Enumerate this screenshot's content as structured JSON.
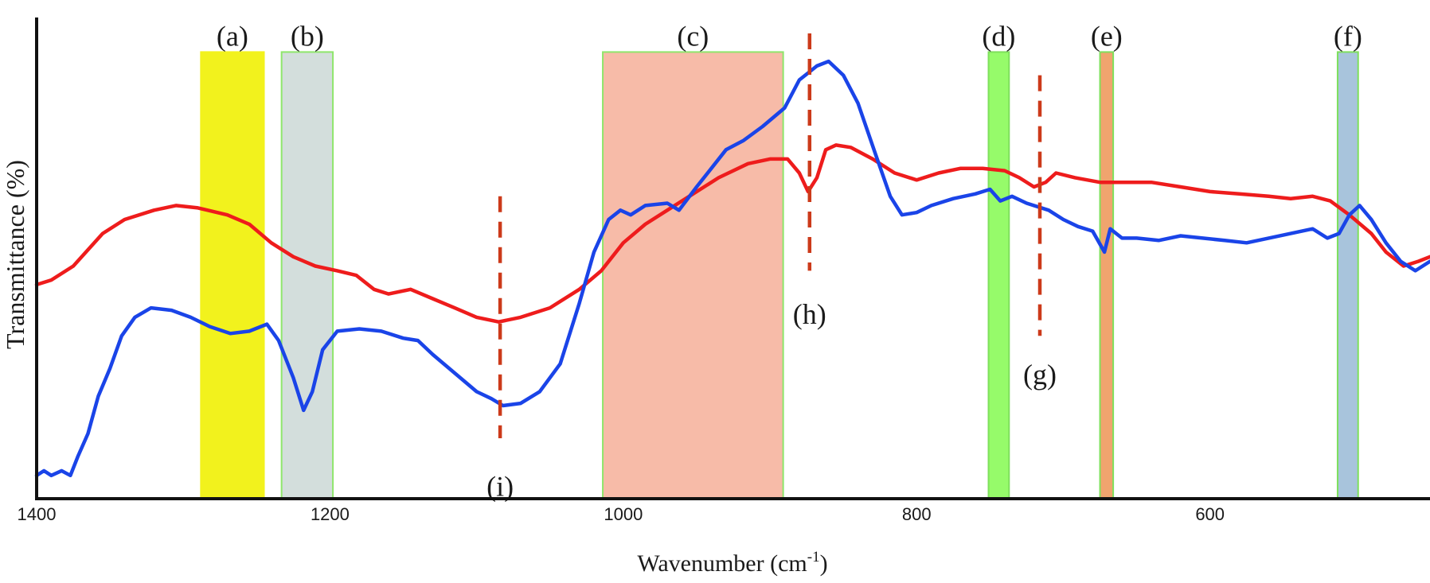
{
  "chart_data": {
    "type": "line",
    "xlabel": "Wavenumber (cm",
    "xlabel_sup": "-1",
    "xlabel_close": ")",
    "ylabel": "Transmittance (%)",
    "xlim": [
      1400,
      450
    ],
    "ylim": [
      0,
      100
    ],
    "x_reversed": true,
    "xticks": [
      1400,
      1200,
      1000,
      800,
      600
    ],
    "grid": false,
    "legend": "none",
    "series": [
      {
        "color": "#ee1c1c",
        "points": [
          [
            1400,
            46
          ],
          [
            1390,
            47
          ],
          [
            1375,
            50
          ],
          [
            1355,
            57
          ],
          [
            1340,
            60
          ],
          [
            1320,
            62
          ],
          [
            1305,
            63
          ],
          [
            1290,
            62.5
          ],
          [
            1270,
            61
          ],
          [
            1255,
            59
          ],
          [
            1240,
            55
          ],
          [
            1225,
            52
          ],
          [
            1210,
            50
          ],
          [
            1195,
            49
          ],
          [
            1182,
            48
          ],
          [
            1170,
            45
          ],
          [
            1160,
            44
          ],
          [
            1145,
            45
          ],
          [
            1130,
            43
          ],
          [
            1115,
            41
          ],
          [
            1100,
            39
          ],
          [
            1085,
            38
          ],
          [
            1070,
            39
          ],
          [
            1050,
            41
          ],
          [
            1030,
            45
          ],
          [
            1015,
            49
          ],
          [
            1000,
            55
          ],
          [
            985,
            59
          ],
          [
            970,
            62
          ],
          [
            955,
            65
          ],
          [
            935,
            69
          ],
          [
            915,
            72
          ],
          [
            900,
            73
          ],
          [
            888,
            73
          ],
          [
            880,
            70
          ],
          [
            874,
            66
          ],
          [
            868,
            69
          ],
          [
            862,
            75
          ],
          [
            855,
            76
          ],
          [
            845,
            75.5
          ],
          [
            830,
            73
          ],
          [
            815,
            70
          ],
          [
            800,
            68.5
          ],
          [
            785,
            70
          ],
          [
            770,
            71
          ],
          [
            755,
            71
          ],
          [
            740,
            70.5
          ],
          [
            730,
            69
          ],
          [
            720,
            67
          ],
          [
            712,
            68
          ],
          [
            705,
            70
          ],
          [
            692,
            69
          ],
          [
            675,
            68
          ],
          [
            660,
            68
          ],
          [
            640,
            68
          ],
          [
            620,
            67
          ],
          [
            600,
            66
          ],
          [
            580,
            65.5
          ],
          [
            560,
            65
          ],
          [
            545,
            64.5
          ],
          [
            530,
            65
          ],
          [
            518,
            64
          ],
          [
            505,
            61
          ],
          [
            490,
            57
          ],
          [
            480,
            53
          ],
          [
            468,
            50
          ],
          [
            458,
            51
          ],
          [
            450,
            52
          ]
        ]
      },
      {
        "color": "#1a44e8",
        "points": [
          [
            1400,
            5
          ],
          [
            1395,
            6
          ],
          [
            1390,
            5
          ],
          [
            1383,
            6
          ],
          [
            1377,
            5
          ],
          [
            1372,
            9
          ],
          [
            1365,
            14
          ],
          [
            1358,
            22
          ],
          [
            1350,
            28
          ],
          [
            1342,
            35
          ],
          [
            1333,
            39
          ],
          [
            1322,
            41
          ],
          [
            1308,
            40.5
          ],
          [
            1295,
            39
          ],
          [
            1282,
            37
          ],
          [
            1268,
            35.5
          ],
          [
            1255,
            36
          ],
          [
            1243,
            37.5
          ],
          [
            1235,
            34
          ],
          [
            1225,
            26
          ],
          [
            1218,
            19
          ],
          [
            1212,
            23
          ],
          [
            1205,
            32
          ],
          [
            1195,
            36
          ],
          [
            1180,
            36.5
          ],
          [
            1165,
            36
          ],
          [
            1150,
            34.5
          ],
          [
            1140,
            34
          ],
          [
            1130,
            31
          ],
          [
            1115,
            27
          ],
          [
            1100,
            23
          ],
          [
            1090,
            21.5
          ],
          [
            1082,
            20
          ],
          [
            1070,
            20.5
          ],
          [
            1057,
            23
          ],
          [
            1043,
            29
          ],
          [
            1030,
            42
          ],
          [
            1020,
            53
          ],
          [
            1010,
            60
          ],
          [
            1002,
            62
          ],
          [
            995,
            61
          ],
          [
            985,
            63
          ],
          [
            970,
            63.5
          ],
          [
            962,
            62
          ],
          [
            950,
            67
          ],
          [
            940,
            71
          ],
          [
            930,
            75
          ],
          [
            918,
            77
          ],
          [
            905,
            80
          ],
          [
            890,
            84
          ],
          [
            880,
            90
          ],
          [
            868,
            93
          ],
          [
            860,
            94
          ],
          [
            850,
            91
          ],
          [
            840,
            85
          ],
          [
            828,
            74
          ],
          [
            818,
            65
          ],
          [
            810,
            61
          ],
          [
            800,
            61.5
          ],
          [
            790,
            63
          ],
          [
            775,
            64.5
          ],
          [
            760,
            65.5
          ],
          [
            750,
            66.5
          ],
          [
            743,
            64
          ],
          [
            735,
            65
          ],
          [
            725,
            63.5
          ],
          [
            710,
            62
          ],
          [
            700,
            60
          ],
          [
            690,
            58.5
          ],
          [
            680,
            57.5
          ],
          [
            672,
            53
          ],
          [
            668,
            58
          ],
          [
            660,
            56
          ],
          [
            650,
            56
          ],
          [
            635,
            55.5
          ],
          [
            620,
            56.5
          ],
          [
            605,
            56
          ],
          [
            590,
            55.5
          ],
          [
            575,
            55
          ],
          [
            560,
            56
          ],
          [
            545,
            57
          ],
          [
            530,
            58
          ],
          [
            520,
            56
          ],
          [
            512,
            57
          ],
          [
            505,
            61
          ],
          [
            498,
            63
          ],
          [
            490,
            60
          ],
          [
            480,
            55
          ],
          [
            470,
            51
          ],
          [
            460,
            49
          ],
          [
            450,
            51
          ]
        ]
      }
    ],
    "bands": [
      {
        "label": "(a)",
        "x_from": 1288,
        "x_to": 1245,
        "fill": "#f2f21d",
        "stroke": "#f2f21d",
        "y_top": 96
      },
      {
        "label": "(b)",
        "x_from": 1233,
        "x_to": 1198,
        "fill": "#d3dedc",
        "stroke": "#8ee66b",
        "y_top": 96
      },
      {
        "label": "(c)",
        "x_from": 1014,
        "x_to": 891,
        "fill": "#f7bba8",
        "stroke": "#8ee66b",
        "y_top": 96
      },
      {
        "label": "(d)",
        "x_from": 751,
        "x_to": 737,
        "fill": "#96fb6a",
        "stroke": "#7ee05c",
        "y_top": 96
      },
      {
        "label": "(e)",
        "x_from": 675,
        "x_to": 666,
        "fill": "#f0a46e",
        "stroke": "#7ee05c",
        "y_top": 96
      },
      {
        "label": "(f)",
        "x_from": 513,
        "x_to": 499,
        "fill": "#a8c4dc",
        "stroke": "#7ee05c",
        "y_top": 96
      }
    ],
    "markers": [
      {
        "label": "(i)",
        "x": 1084,
        "y_from": 13,
        "y_to": 65,
        "label_y": 3,
        "label_side": "below"
      },
      {
        "label": "(h)",
        "x": 873,
        "y_from": 49,
        "y_to": 100,
        "label_y": 40,
        "label_side": "below"
      },
      {
        "label": "(g)",
        "x": 716,
        "y_from": 35,
        "y_to": 91,
        "label_y": 27,
        "label_side": "below"
      }
    ],
    "style": {
      "band_color_overlay": "#f07070",
      "marker_color": "#cc3a1a"
    }
  }
}
